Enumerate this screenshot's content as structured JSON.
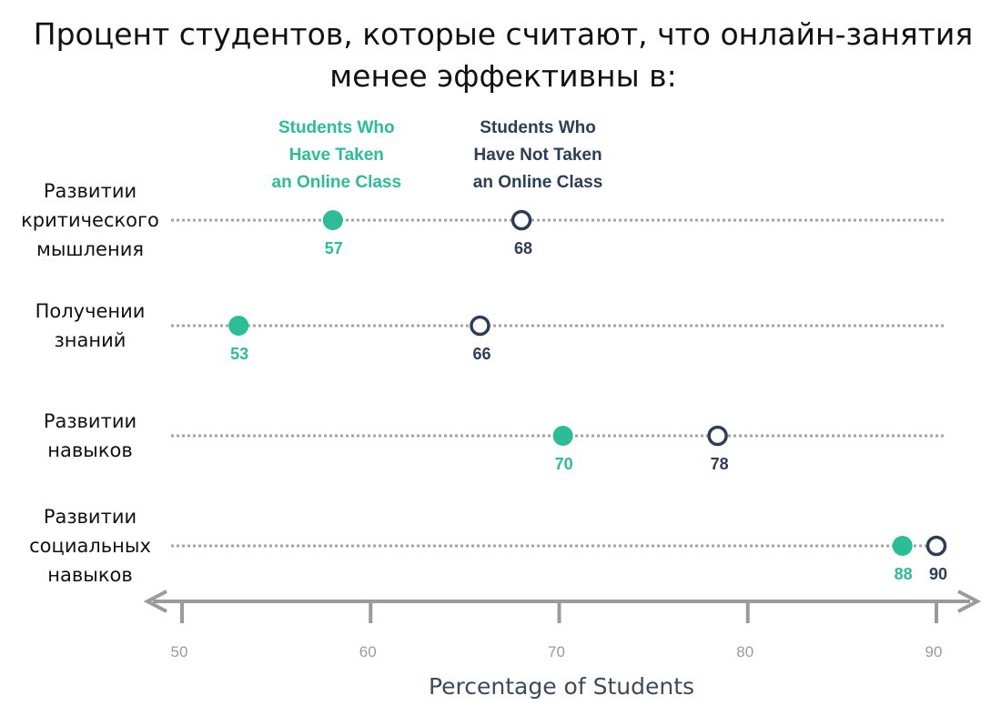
{
  "title": {
    "line1": "Процент студентов, которые считают, что онлайн-занятия",
    "line2": "менее эффективны в:"
  },
  "chart_data": {
    "type": "scatter",
    "title": "Процент студентов, которые считают, что онлайн-занятия менее эффективны в:",
    "xlabel": "Percentage of Students",
    "ylabel": "",
    "xlim": [
      50,
      90
    ],
    "xticks": [
      50,
      60,
      70,
      80,
      90
    ],
    "grid": false,
    "legend_placement": "top",
    "categories": [
      [
        "Развитии",
        "критического",
        "мышления"
      ],
      [
        "Получении",
        "знаний"
      ],
      [
        "Развитии",
        "навыков"
      ],
      [
        "Развитии",
        "социальных",
        "навыков"
      ]
    ],
    "series": [
      {
        "name": "Students Who Have Taken an Online Class",
        "legend_lines": [
          "Students Who",
          "Have Taken",
          "an Online Class"
        ],
        "color": "#2bbd98",
        "marker": "filled-circle",
        "values": [
          57,
          53,
          70,
          88
        ],
        "positions": [
          58,
          53,
          70.2,
          88.2
        ]
      },
      {
        "name": "Students Who Have Not Taken an Online Class",
        "legend_lines": [
          "Students Who",
          "Have Not Taken",
          "an Online Class"
        ],
        "color": "#2c3e57",
        "marker": "hollow-circle",
        "values": [
          68,
          66,
          78,
          90
        ],
        "positions": [
          68,
          65.8,
          78.4,
          90
        ]
      }
    ]
  }
}
